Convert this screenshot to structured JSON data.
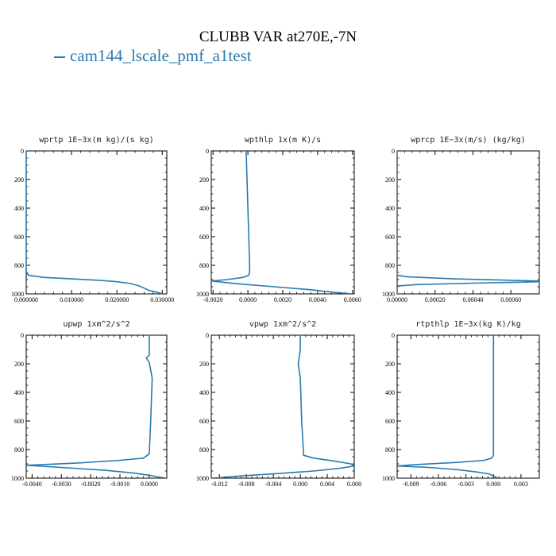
{
  "title": "CLUBB VAR at270E,-7N",
  "legend": {
    "label": "cam144_lscale_pmf_a1test",
    "color": "#2a7ab0"
  },
  "chart_data": [
    {
      "type": "line",
      "title": "wprtp  1E−3x(m kg)/(s kg)",
      "xlim": [
        0.0,
        0.031
      ],
      "ylim": [
        1000,
        0
      ],
      "y_inverted": true,
      "xticks": [
        0.0,
        0.01,
        0.02,
        0.03
      ],
      "xtick_labels": [
        "0.000000",
        "0.010000",
        "0.020000",
        "0.030000"
      ],
      "yticks": [
        0,
        200,
        400,
        600,
        800,
        1000
      ],
      "series": [
        {
          "color": "#2a7ab0",
          "x": [
            0.0,
            0.0,
            0.0005,
            0.004,
            0.01,
            0.016,
            0.02,
            0.023,
            0.025,
            0.026,
            0.027,
            0.029,
            0.03
          ],
          "y": [
            0,
            850,
            870,
            885,
            895,
            905,
            915,
            928,
            945,
            960,
            975,
            990,
            1000
          ]
        }
      ]
    },
    {
      "type": "line",
      "title": "wpthlp  1x(m K)/s",
      "xlim": [
        -0.0021,
        0.0061
      ],
      "ylim": [
        1000,
        0
      ],
      "y_inverted": true,
      "xticks": [
        -0.002,
        0.0,
        0.002,
        0.004,
        0.006
      ],
      "xtick_labels": [
        "-0.0020",
        "0.0000",
        "0.0020",
        "0.0040",
        "0.0060"
      ],
      "yticks": [
        0,
        200,
        400,
        600,
        800,
        1000
      ],
      "series": [
        {
          "color": "#2a7ab0",
          "x": [
            -0.0001,
            -5e-05,
            0.0,
            5e-05,
            0.0001,
            0.0001,
            5e-05,
            -0.0003,
            -0.0012,
            -0.0021,
            -0.0005,
            0.0015,
            0.0035,
            0.005,
            0.006
          ],
          "y": [
            0,
            200,
            400,
            600,
            800,
            840,
            870,
            885,
            900,
            910,
            930,
            950,
            970,
            990,
            1000
          ]
        }
      ]
    },
    {
      "type": "line",
      "title": "wprcp  1E−3x(m/s) (kg/kg)",
      "xlim": [
        0.0,
        0.00075
      ],
      "ylim": [
        1000,
        0
      ],
      "y_inverted": true,
      "xticks": [
        0.0,
        0.0002,
        0.0004,
        0.0006
      ],
      "xtick_labels": [
        "0.00000",
        "0.00020",
        "0.00040",
        "0.00060"
      ],
      "yticks": [
        0,
        200,
        400,
        600,
        800,
        1000
      ],
      "series": [
        {
          "color": "#2a7ab0",
          "x": [
            0.0,
            0.0,
            5e-05,
            0.0003,
            0.00075,
            0.00075,
            0.0004,
            0.0001,
            0.0,
            0.0
          ],
          "y": [
            0,
            870,
            880,
            895,
            910,
            915,
            925,
            935,
            945,
            1000
          ]
        }
      ]
    },
    {
      "type": "line",
      "title": "upwp  1xm^2/s^2",
      "xlim": [
        -0.0042,
        0.0006
      ],
      "ylim": [
        1000,
        0
      ],
      "y_inverted": true,
      "xticks": [
        -0.004,
        -0.003,
        -0.002,
        -0.001,
        0.0
      ],
      "xtick_labels": [
        "-0.0040",
        "-0.0030",
        "-0.0020",
        "-0.0010",
        "0.0000"
      ],
      "yticks": [
        0,
        200,
        400,
        600,
        800,
        1000
      ],
      "series": [
        {
          "color": "#2a7ab0",
          "x": [
            0.0,
            0.0,
            -0.0001,
            0.0,
            0.0001,
            5e-05,
            0.0,
            -0.0002,
            -0.001,
            -0.0025,
            -0.0042,
            -0.003,
            -0.0015,
            -0.0005,
            0.0,
            0.0004,
            0.0006
          ],
          "y": [
            0,
            140,
            160,
            190,
            300,
            600,
            830,
            860,
            875,
            895,
            910,
            925,
            945,
            965,
            980,
            995,
            1000
          ]
        }
      ]
    },
    {
      "type": "line",
      "title": "vpwp  1xm^2/s^2",
      "xlim": [
        -0.0132,
        0.008
      ],
      "ylim": [
        1000,
        0
      ],
      "y_inverted": true,
      "xticks": [
        -0.012,
        -0.008,
        -0.004,
        0.0,
        0.004,
        0.008
      ],
      "xtick_labels": [
        "-0.012",
        "-0.008",
        "-0.004",
        "0.000",
        "0.004",
        "0.008"
      ],
      "yticks": [
        0,
        200,
        400,
        600,
        800,
        1000
      ],
      "series": [
        {
          "color": "#2a7ab0",
          "x": [
            0.0,
            0.0,
            -0.0003,
            0.0,
            0.0002,
            0.0005,
            0.002,
            0.005,
            0.0075,
            0.008,
            0.006,
            0.002,
            -0.004,
            -0.009,
            -0.013
          ],
          "y": [
            0,
            100,
            200,
            300,
            600,
            840,
            860,
            880,
            900,
            915,
            930,
            950,
            970,
            985,
            1000
          ]
        }
      ]
    },
    {
      "type": "line",
      "title": "rtpthlp  1E−3x(kg K)/kg",
      "xlim": [
        -0.0105,
        0.005
      ],
      "ylim": [
        1000,
        0
      ],
      "y_inverted": true,
      "xticks": [
        -0.009,
        -0.006,
        -0.003,
        0.0,
        0.003
      ],
      "xtick_labels": [
        "-0.009",
        "-0.006",
        "-0.003",
        "0.000",
        "0.003"
      ],
      "yticks": [
        0,
        200,
        400,
        600,
        800,
        1000
      ],
      "series": [
        {
          "color": "#2a7ab0",
          "x": [
            0.0,
            0.0,
            0.0,
            -0.0002,
            -0.001,
            -0.004,
            -0.0085,
            -0.0105,
            -0.007,
            -0.004,
            -0.002,
            -0.0005,
            0.0,
            0.0005
          ],
          "y": [
            0,
            400,
            840,
            860,
            875,
            890,
            905,
            915,
            925,
            940,
            955,
            970,
            985,
            1000
          ]
        }
      ]
    }
  ]
}
